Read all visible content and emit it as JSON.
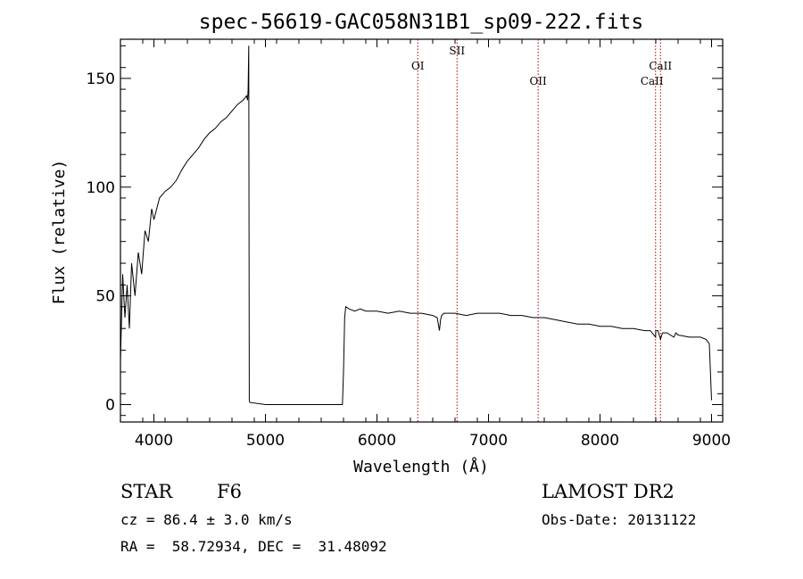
{
  "chart_data": {
    "type": "line",
    "title": "spec-56619-GAC058N31B1_sp09-222.fits",
    "xlabel": "Wavelength (Å)",
    "ylabel": "Flux (relative)",
    "xlim": [
      3700,
      9100
    ],
    "ylim": [
      -8,
      168
    ],
    "x_ticks": [
      4000,
      5000,
      6000,
      7000,
      8000,
      9000
    ],
    "y_ticks": [
      0,
      50,
      100,
      150
    ],
    "grid": false,
    "series": [
      {
        "x": [
          3700,
          3720,
          3740,
          3760,
          3780,
          3800,
          3830,
          3860,
          3890,
          3920,
          3950,
          3980,
          4000,
          4050,
          4100,
          4150,
          4200,
          4250,
          4300,
          4350,
          4400,
          4450,
          4500,
          4550,
          4600,
          4650,
          4700,
          4750,
          4800,
          4830,
          4840,
          4845,
          4850,
          4855,
          4860,
          5000,
          5500,
          5690,
          5700,
          5710,
          5720,
          5750,
          5800,
          5850,
          5900,
          6000,
          6100,
          6200,
          6300,
          6400,
          6500,
          6540,
          6560,
          6570,
          6580,
          6600,
          6700,
          6800,
          6900,
          7000,
          7100,
          7200,
          7300,
          7400,
          7500,
          7600,
          7700,
          7800,
          7900,
          8000,
          8100,
          8200,
          8300,
          8400,
          8450,
          8498,
          8500,
          8520,
          8542,
          8560,
          8600,
          8662,
          8680,
          8700,
          8800,
          8900,
          8950,
          8980,
          9000
        ],
        "y": [
          20,
          60,
          40,
          55,
          35,
          65,
          50,
          70,
          60,
          80,
          75,
          90,
          85,
          95,
          98,
          100,
          103,
          108,
          112,
          115,
          118,
          122,
          125,
          127,
          130,
          132,
          135,
          138,
          140,
          142,
          140,
          145,
          165,
          2,
          1,
          0,
          0,
          0,
          15,
          40,
          45,
          44,
          43,
          44,
          43,
          43,
          42,
          43,
          42,
          42,
          41,
          40,
          34,
          39,
          41,
          42,
          42,
          41,
          42,
          42,
          42,
          41,
          41,
          40,
          40,
          39,
          38,
          37,
          37,
          36,
          36,
          35,
          35,
          34,
          34,
          31,
          34,
          34,
          30,
          33,
          33,
          31,
          33,
          32,
          31,
          31,
          30,
          28,
          2
        ]
      }
    ],
    "lines": [
      {
        "label": "OI",
        "x": 6366
      },
      {
        "label": "SII",
        "x": 6718
      },
      {
        "label": "OII",
        "x": 7445
      },
      {
        "label": "CaII",
        "x": 8498
      },
      {
        "label": "CaII",
        "x": 8542
      }
    ]
  },
  "footer": {
    "object_type": "STAR",
    "spectral_class": "F6",
    "survey": "LAMOST DR2",
    "redshift": "cz = 86.4 ± 3.0 km/s",
    "obs_date": "Obs-Date: 20131122",
    "coords": "RA =  58.72934, DEC =  31.48092"
  },
  "colors": {
    "spectrum": "#000000",
    "line_markers": "#aa0000",
    "axes": "#000000"
  }
}
